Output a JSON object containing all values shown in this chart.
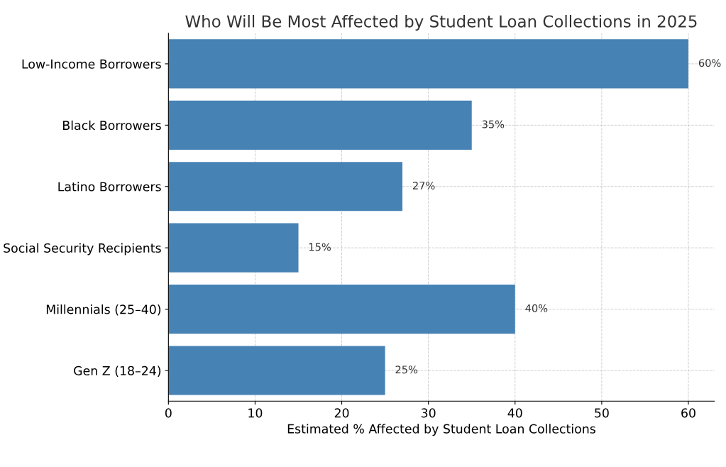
{
  "chart_data": {
    "type": "bar",
    "orientation": "horizontal",
    "title": "Who Will Be Most Affected by Student Loan Collections in 2025",
    "xlabel": "Estimated % Affected by Student Loan Collections",
    "categories": [
      "Low-Income Borrowers",
      "Black Borrowers",
      "Latino Borrowers",
      "Social Security Recipients",
      "Millennials (25–40)",
      "Gen Z (18–24)"
    ],
    "values": [
      60,
      35,
      27,
      15,
      40,
      25
    ],
    "value_labels": [
      "60%",
      "35%",
      "27%",
      "15%",
      "40%",
      "25%"
    ],
    "color": "#4682b4",
    "xlim": [
      0,
      63
    ],
    "xticks": [
      0,
      10,
      20,
      30,
      40,
      50,
      60
    ],
    "grid": true
  }
}
